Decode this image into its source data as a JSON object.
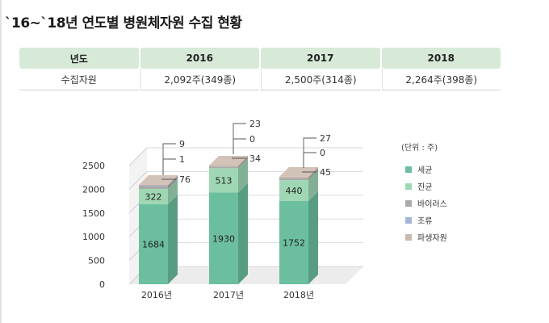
{
  "title": "`16~`18년 연도별 병원체자원 수집 현황",
  "table": {
    "headers": [
      "년도",
      "2016",
      "2017",
      "2018"
    ],
    "row_label": "수집자원",
    "row_values": [
      "2,092주(349종)",
      "2,500주(314종)",
      "2,264주(398종)"
    ]
  },
  "chart_data": {
    "type": "bar",
    "stacked": true,
    "categories": [
      "2016년",
      "2017년",
      "2018년"
    ],
    "series": [
      {
        "name": "세균",
        "values": [
          1684,
          1930,
          1752
        ],
        "color": "#6bbf9f"
      },
      {
        "name": "진균",
        "values": [
          322,
          513,
          440
        ],
        "color": "#9fd7b4"
      },
      {
        "name": "바이러스",
        "values": [
          76,
          34,
          45
        ],
        "color": "#a9aba9"
      },
      {
        "name": "조류",
        "values": [
          1,
          0,
          0
        ],
        "color": "#a7b6d8"
      },
      {
        "name": "파생자원",
        "values": [
          9,
          23,
          27
        ],
        "color": "#c9b9ae"
      }
    ],
    "ylim": [
      0,
      2500
    ],
    "yticks": [
      0,
      500,
      1000,
      1500,
      2000,
      2500
    ],
    "unit_note": "(단위 : 주)",
    "legend_position": "right",
    "three_d": true
  }
}
